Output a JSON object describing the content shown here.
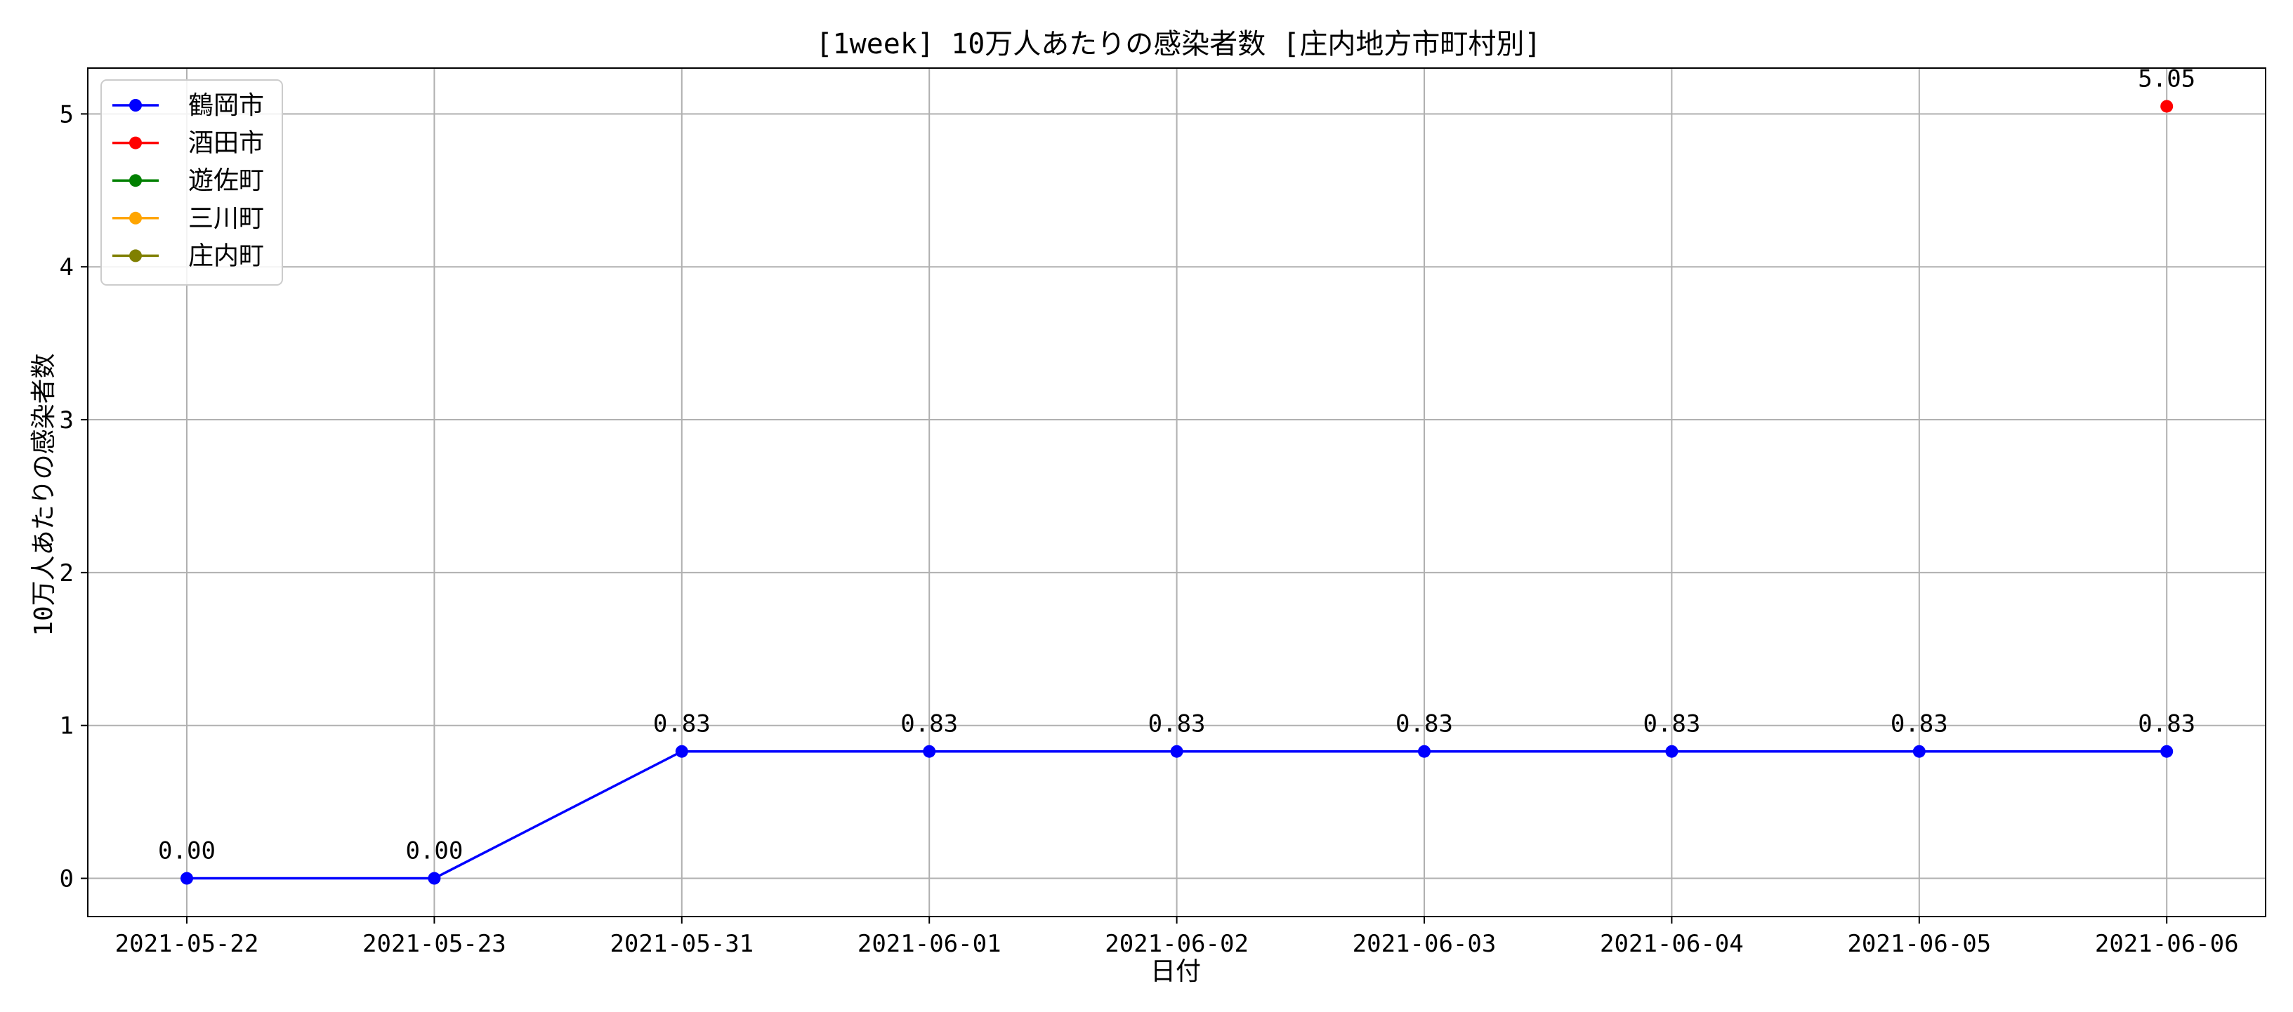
{
  "chart_data": {
    "type": "line",
    "title": "[1week] 10万人あたりの感染者数 [庄内地方市町村別]",
    "xlabel": "日付",
    "ylabel": "10万人あたりの感染者数",
    "categories": [
      "2021-05-22",
      "2021-05-23",
      "2021-05-31",
      "2021-06-01",
      "2021-06-02",
      "2021-06-03",
      "2021-06-04",
      "2021-06-05",
      "2021-06-06"
    ],
    "ylim": [
      -0.25,
      5.3
    ],
    "yticks": [
      0,
      1,
      2,
      3,
      4,
      5
    ],
    "grid": true,
    "legend_position": "upper-left",
    "series": [
      {
        "name": "鶴岡市",
        "color": "#0000ff",
        "values": [
          0.0,
          0.0,
          0.83,
          0.83,
          0.83,
          0.83,
          0.83,
          0.83,
          0.83
        ],
        "labels": [
          "0.00",
          "0.00",
          "0.83",
          "0.83",
          "0.83",
          "0.83",
          "0.83",
          "0.83",
          "0.83"
        ]
      },
      {
        "name": "酒田市",
        "color": "#ff0000",
        "values": [
          null,
          null,
          null,
          null,
          null,
          null,
          null,
          null,
          5.05
        ],
        "labels": [
          null,
          null,
          null,
          null,
          null,
          null,
          null,
          null,
          "5.05"
        ]
      },
      {
        "name": "遊佐町",
        "color": "#008000",
        "values": [
          null,
          null,
          null,
          null,
          null,
          null,
          null,
          null,
          null
        ],
        "labels": []
      },
      {
        "name": "三川町",
        "color": "#ffa500",
        "values": [
          null,
          null,
          null,
          null,
          null,
          null,
          null,
          null,
          null
        ],
        "labels": []
      },
      {
        "name": "庄内町",
        "color": "#808000",
        "values": [
          null,
          null,
          null,
          null,
          null,
          null,
          null,
          null,
          null
        ],
        "labels": []
      }
    ]
  }
}
